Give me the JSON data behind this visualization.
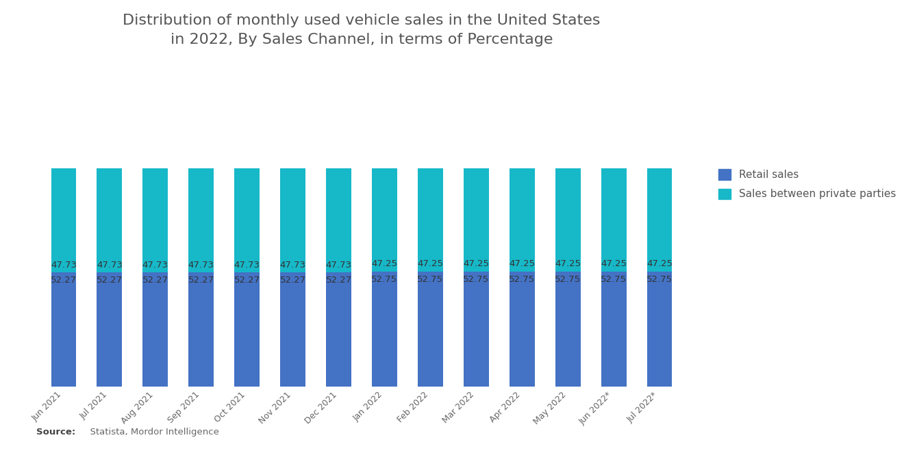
{
  "title": "Distribution of monthly used vehicle sales in the United States\nin 2022, By Sales Channel, in terms of Percentage",
  "categories": [
    "Jun 2021",
    "Jul 2021",
    "Aug 2021",
    "Sep 2021",
    "Oct 2021",
    "Nov 2021",
    "Dec 2021",
    "Jan 2022",
    "Feb 2022",
    "Mar 2022",
    "Apr 2022",
    "May 2022",
    "Jun 2022*",
    "Jul 2022*"
  ],
  "retail_sales": [
    52.27,
    52.27,
    52.27,
    52.27,
    52.27,
    52.27,
    52.27,
    52.75,
    52.75,
    52.75,
    52.75,
    52.75,
    52.75,
    52.75
  ],
  "private_sales": [
    47.73,
    47.73,
    47.73,
    47.73,
    47.73,
    47.73,
    47.73,
    47.25,
    47.25,
    47.25,
    47.25,
    47.25,
    47.25,
    47.25
  ],
  "retail_label_fmt": [
    "52.27",
    "52.27",
    "52.27",
    "52.27",
    "52.27",
    "52.27",
    "52.27",
    "52.75",
    "52.75",
    "52.75",
    "52.75",
    "52.75",
    "52.75",
    "52.75"
  ],
  "private_label_fmt": [
    "47.73",
    "47.73",
    "47.73",
    "47.73",
    "47.73",
    "47.73",
    "47.73",
    "47.25",
    "47.25",
    "47.25",
    "47.25",
    "47.25",
    "47.25",
    "47.25"
  ],
  "retail_color": "#4472c4",
  "private_color": "#17b8c8",
  "background_color": "#ffffff",
  "title_fontsize": 16,
  "label_fontsize": 9.5,
  "tick_fontsize": 9,
  "legend_labels": [
    "Retail sales",
    "Sales between private parties"
  ],
  "legend_color_retail": "#4472c4",
  "legend_color_private": "#17b8c8",
  "source_bold": "Source:",
  "source_normal": "  Statista, Mordor Intelligence",
  "ylim": [
    0,
    100
  ]
}
